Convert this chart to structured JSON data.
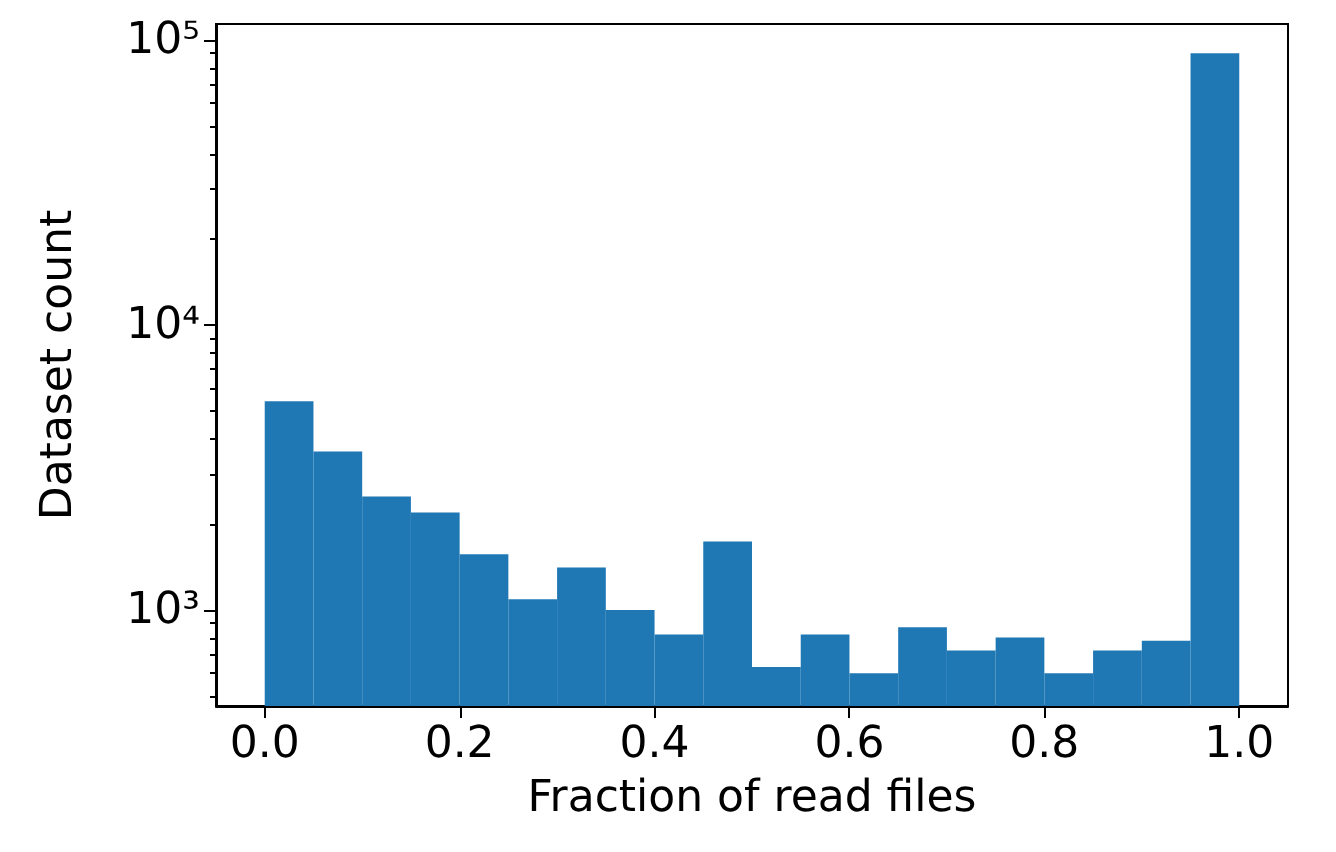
{
  "chart_data": {
    "type": "histogram",
    "xlabel": "Fraction of read files",
    "ylabel": "Dataset count",
    "bins": [
      0,
      0.05,
      0.1,
      0.15,
      0.2,
      0.25,
      0.3,
      0.35,
      0.4,
      0.45,
      0.5,
      0.55,
      0.6,
      0.65,
      0.7,
      0.75,
      0.8,
      0.85,
      0.9,
      0.95,
      1.0
    ],
    "values": [
      5400,
      3600,
      2500,
      2200,
      1570,
      1090,
      1410,
      1000,
      820,
      1740,
      630,
      820,
      600,
      870,
      720,
      800,
      600,
      720,
      780,
      90000
    ],
    "color": "#1f77b4",
    "log": "y",
    "xlim": [
      -0.05,
      1.05
    ],
    "xticks": [
      {
        "value": 0,
        "label": "0.0"
      },
      {
        "value": 0.2,
        "label": "0.2"
      },
      {
        "value": 0.4,
        "label": "0.4"
      },
      {
        "value": 0.6,
        "label": "0.6"
      },
      {
        "value": 0.8,
        "label": "0.8"
      },
      {
        "value": 1,
        "label": "1.0"
      }
    ],
    "ylim": [
      460,
      114000
    ],
    "yticks": [
      {
        "value": 1000,
        "label": "10³"
      },
      {
        "value": 10000,
        "label": "10⁴"
      },
      {
        "value": 100000,
        "label": "10⁵"
      }
    ]
  }
}
